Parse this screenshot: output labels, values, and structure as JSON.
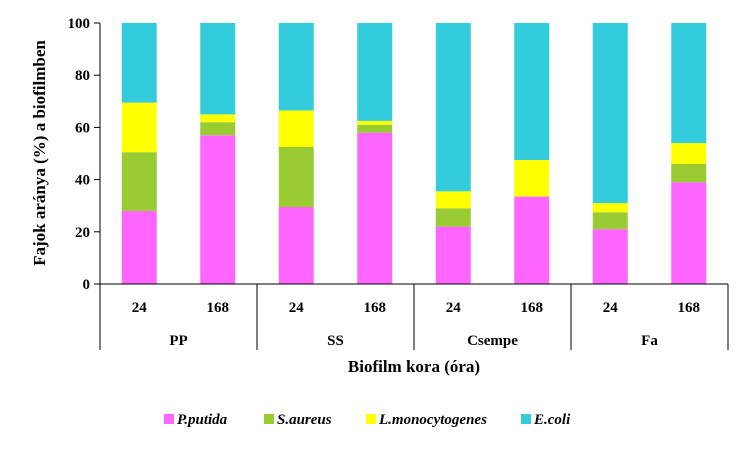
{
  "chart_data": {
    "type": "bar",
    "stacked": true,
    "ylabel": "Fajok aránya (%) a biofilmben",
    "xlabel": "Biofilm kora (óra)",
    "ylim": [
      0,
      100
    ],
    "yticks": [
      "0",
      "20",
      "40",
      "60",
      "80",
      "100"
    ],
    "categories": [
      "24",
      "168",
      "24",
      "168",
      "24",
      "168",
      "24",
      "168"
    ],
    "groups": [
      {
        "label": "PP",
        "span": 2
      },
      {
        "label": "SS",
        "span": 2
      },
      {
        "label": "Csempe",
        "span": 2
      },
      {
        "label": "Fa",
        "span": 2
      }
    ],
    "series": [
      {
        "name": "P.putida",
        "color": "#ff66ff",
        "values": [
          28,
          57,
          29.5,
          58,
          22,
          33.5,
          21,
          39
        ]
      },
      {
        "name": "S.aureus",
        "color": "#99cc33",
        "values": [
          22.5,
          5,
          23,
          3,
          7,
          0,
          6.5,
          7
        ]
      },
      {
        "name": "L.monocytogenes",
        "color": "#ffff00",
        "values": [
          19,
          3,
          14,
          1.5,
          6.5,
          14,
          3.5,
          8
        ]
      },
      {
        "name": "E.coli",
        "color": "#33ccdd",
        "values": [
          30.5,
          35,
          33.5,
          37.5,
          64.5,
          52.5,
          69,
          46
        ]
      }
    ],
    "grid": false,
    "legend_position": "bottom"
  }
}
